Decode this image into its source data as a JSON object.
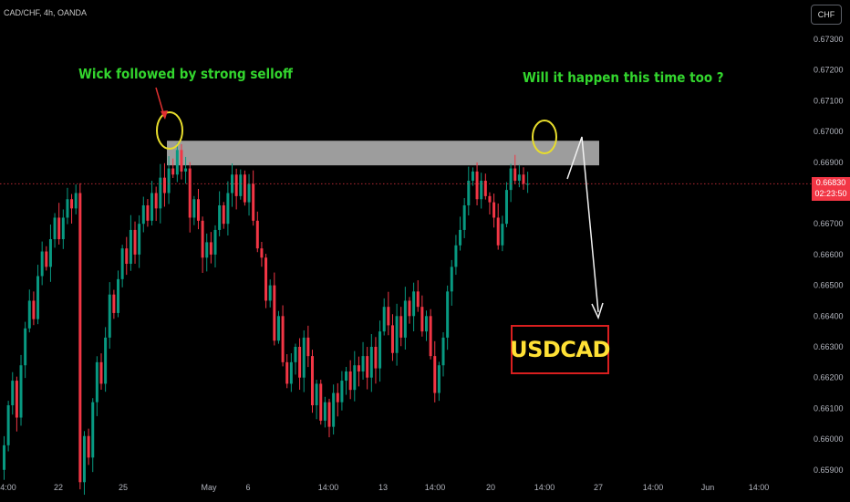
{
  "symbol_label": "CAD/CHF, 4h, OANDA",
  "currency_button": "CHF",
  "annotations": {
    "left_text": "Wick followed by strong selloff",
    "right_text": "Will it happen this time too ?",
    "badge_text": "USDCAD",
    "text_color": "#33d62e",
    "badge_text_color": "#ffe135",
    "badge_border_color": "#d91f1f",
    "marker_color": "#e8dd2c"
  },
  "current_price": {
    "price": "0.66830",
    "countdown": "02:23:50",
    "color": "#f23645"
  },
  "colors": {
    "background": "#000000",
    "up_candle": "#089981",
    "down_candle": "#f23645",
    "resistance_zone": "#d9d9d9",
    "axis_text": "#b2b5be"
  },
  "chart_data": {
    "type": "candlestick",
    "title": "CAD/CHF, 4h, OANDA",
    "ylim": [
      0.6586,
      0.6738
    ],
    "y_ticks": [
      "0.67300",
      "0.67200",
      "0.67100",
      "0.67000",
      "0.66900",
      "0.66800",
      "0.66700",
      "0.66600",
      "0.66500",
      "0.66400",
      "0.66300",
      "0.66200",
      "0.66100",
      "0.66000",
      "0.65900"
    ],
    "x_ticks": [
      "4:00",
      "22",
      "25",
      "May",
      "6",
      "14:00",
      "13",
      "14:00",
      "20",
      "14:00",
      "27",
      "14:00",
      "Jun",
      "14:00"
    ],
    "resistance_zone": [
      0.6689,
      0.6697
    ],
    "grid": false,
    "closes": [
      0.6598,
      0.6611,
      0.6619,
      0.6607,
      0.6624,
      0.6636,
      0.6645,
      0.6639,
      0.6653,
      0.6661,
      0.6656,
      0.6665,
      0.6672,
      0.6665,
      0.6672,
      0.6678,
      0.6675,
      0.668,
      0.6586,
      0.6601,
      0.6594,
      0.6612,
      0.6625,
      0.6618,
      0.6633,
      0.6647,
      0.6641,
      0.6652,
      0.6662,
      0.6657,
      0.6668,
      0.666,
      0.667,
      0.6676,
      0.6671,
      0.668,
      0.6675,
      0.6685,
      0.668,
      0.6688,
      0.6686,
      0.6694,
      0.6687,
      0.6688,
      0.6672,
      0.6678,
      0.6671,
      0.6659,
      0.6664,
      0.666,
      0.6668,
      0.6676,
      0.667,
      0.668,
      0.6686,
      0.6679,
      0.6686,
      0.6677,
      0.6683,
      0.6671,
      0.6662,
      0.6659,
      0.6645,
      0.665,
      0.6632,
      0.664,
      0.6625,
      0.6618,
      0.6625,
      0.663,
      0.662,
      0.6633,
      0.6627,
      0.6611,
      0.6618,
      0.6606,
      0.6612,
      0.6604,
      0.6615,
      0.6612,
      0.6619,
      0.6622,
      0.6616,
      0.6624,
      0.6622,
      0.6627,
      0.662,
      0.663,
      0.6623,
      0.6635,
      0.6643,
      0.6637,
      0.6628,
      0.664,
      0.6633,
      0.6645,
      0.664,
      0.6648,
      0.6643,
      0.6635,
      0.664,
      0.6627,
      0.6615,
      0.6624,
      0.6633,
      0.6648,
      0.6656,
      0.6663,
      0.6668,
      0.6676,
      0.6684,
      0.6687,
      0.6678,
      0.6684,
      0.6679,
      0.6677,
      0.6672,
      0.6663,
      0.667,
      0.6681,
      0.6688,
      0.6684,
      0.6686,
      0.6683,
      0.6683
    ]
  }
}
